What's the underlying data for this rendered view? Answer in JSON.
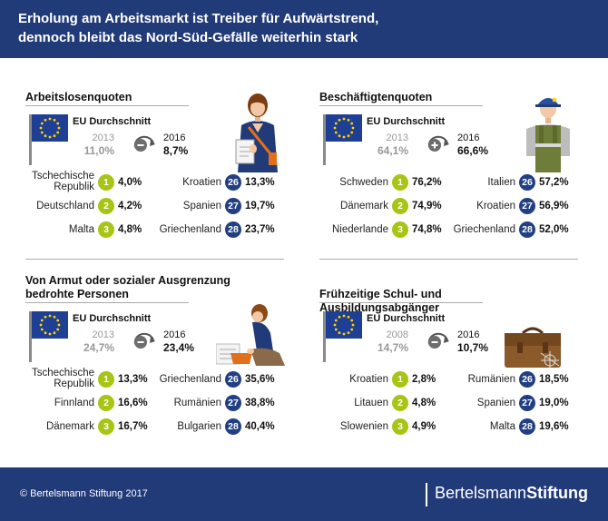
{
  "header": {
    "title_line1": "Erholung am Arbeitsmarkt ist Treiber für Aufwärtstrend,",
    "title_line2": "dennoch bleibt das Nord-Süd-Gefälle weiterhin stark"
  },
  "footer": {
    "copyright": "© Bertelsmann Stiftung 2017",
    "brand_regular": "Bertelsmann",
    "brand_bold": "Stiftung"
  },
  "colors": {
    "navy": "#213a78",
    "green": "#a8c415",
    "badge_navy": "#233f84",
    "old_grey": "#999999"
  },
  "panels": [
    {
      "title": "Arbeitslosenquoten",
      "eu_label": "EU Durchschnitt",
      "old_year": "2013",
      "old_value": "11,0%",
      "new_year": "2016",
      "new_value": "8,7%",
      "change_icon": "minus-arrow-icon",
      "illustration": "office-worker-icon",
      "best": [
        {
          "country": "Tschechische Republik",
          "rank": "1",
          "value": "4,0%"
        },
        {
          "country": "Deutschland",
          "rank": "2",
          "value": "4,2%"
        },
        {
          "country": "Malta",
          "rank": "3",
          "value": "4,8%"
        }
      ],
      "worst": [
        {
          "country": "Kroatien",
          "rank": "26",
          "value": "13,3%"
        },
        {
          "country": "Spanien",
          "rank": "27",
          "value": "19,7%"
        },
        {
          "country": "Griechenland",
          "rank": "28",
          "value": "23,7%"
        }
      ]
    },
    {
      "title": "Beschäftigtenquoten",
      "eu_label": "EU Durchschnitt",
      "old_year": "2013",
      "old_value": "64,1%",
      "new_year": "2016",
      "new_value": "66,6%",
      "change_icon": "plus-arrow-icon",
      "illustration": "construction-worker-icon",
      "best": [
        {
          "country": "Schweden",
          "rank": "1",
          "value": "76,2%"
        },
        {
          "country": "Dänemark",
          "rank": "2",
          "value": "74,9%"
        },
        {
          "country": "Niederlande",
          "rank": "3",
          "value": "74,8%"
        }
      ],
      "worst": [
        {
          "country": "Italien",
          "rank": "26",
          "value": "57,2%"
        },
        {
          "country": "Kroatien",
          "rank": "27",
          "value": "56,9%"
        },
        {
          "country": "Griechenland",
          "rank": "28",
          "value": "52,0%"
        }
      ]
    },
    {
      "title": "Von Armut oder sozialer Ausgrenzung bedrohte Personen",
      "eu_label": "EU Durchschnitt",
      "old_year": "2013",
      "old_value": "24,7%",
      "new_year": "2016",
      "new_value": "23,4%",
      "change_icon": "minus-arrow-icon",
      "illustration": "sitting-person-icon",
      "best": [
        {
          "country": "Tschechische Republik",
          "rank": "1",
          "value": "13,3%"
        },
        {
          "country": "Finnland",
          "rank": "2",
          "value": "16,6%"
        },
        {
          "country": "Dänemark",
          "rank": "3",
          "value": "16,7%"
        }
      ],
      "worst": [
        {
          "country": "Griechenland",
          "rank": "26",
          "value": "35,6%"
        },
        {
          "country": "Rumänien",
          "rank": "27",
          "value": "38,8%"
        },
        {
          "country": "Bulgarien",
          "rank": "28",
          "value": "40,4%"
        }
      ]
    },
    {
      "title": "Frühzeitige Schul- und Ausbildungsabgänger",
      "eu_label": "EU Durchschnitt",
      "old_year": "2008",
      "old_value": "14,7%",
      "new_year": "2016",
      "new_value": "10,7%",
      "change_icon": "minus-arrow-icon",
      "illustration": "school-bag-icon",
      "best": [
        {
          "country": "Kroatien",
          "rank": "1",
          "value": "2,8%"
        },
        {
          "country": "Litauen",
          "rank": "2",
          "value": "4,8%"
        },
        {
          "country": "Slowenien",
          "rank": "3",
          "value": "4,9%"
        }
      ],
      "worst": [
        {
          "country": "Rumänien",
          "rank": "26",
          "value": "18,5%"
        },
        {
          "country": "Spanien",
          "rank": "27",
          "value": "19,0%"
        },
        {
          "country": "Malta",
          "rank": "28",
          "value": "19,6%"
        }
      ]
    }
  ]
}
